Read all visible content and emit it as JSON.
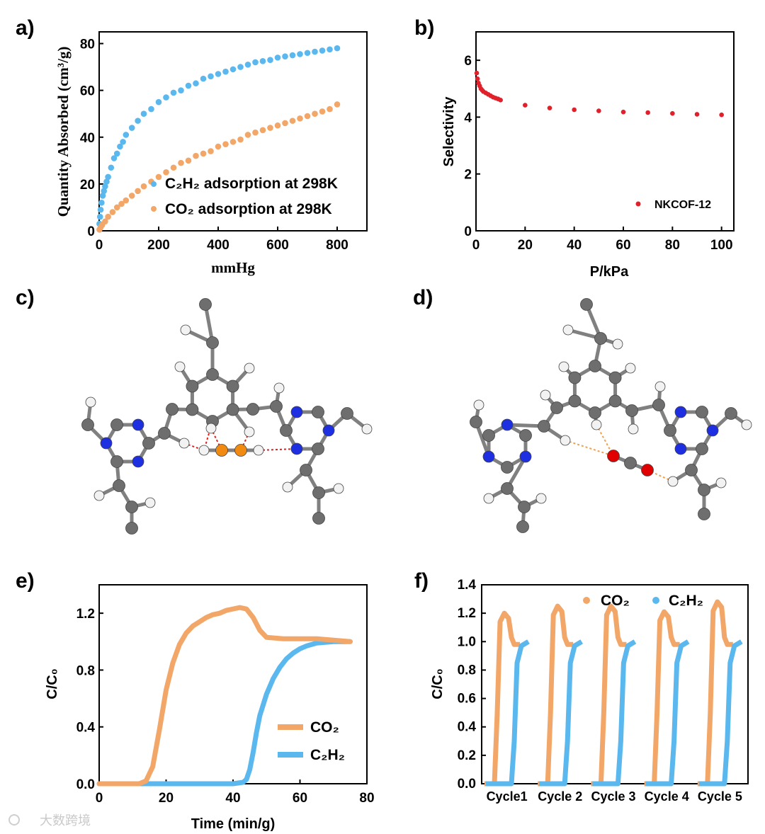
{
  "colors": {
    "blue": "#5bb8ee",
    "orange": "#f2a768",
    "red": "#e0202a",
    "carbon": "#6e6e6e",
    "nitrogen": "#1d2fe0",
    "hydrogen": "#f2f2f2",
    "oxygen": "#e00000",
    "acetylene": "#f08a10"
  },
  "panels": {
    "a": "a)",
    "b": "b)",
    "c": "c)",
    "d": "d)",
    "e": "e)",
    "f": "f)"
  },
  "watermark": "大数跨境",
  "chart_data": [
    {
      "panel": "a",
      "type": "scatter",
      "xlabel": "mmHg",
      "ylabel": "Quantity Absorbed (cm³/g)",
      "xlim": [
        0,
        900
      ],
      "ylim": [
        0,
        85
      ],
      "xticks": [
        "0",
        "200",
        "400",
        "600",
        "800"
      ],
      "yticks": [
        "0",
        "20",
        "40",
        "60",
        "80"
      ],
      "legend_position": "center-right",
      "series": [
        {
          "name": "C2H2 adsorption at 298K",
          "label": "C₂H₂  adsorption at 298K",
          "color": "#5bb8ee",
          "x": [
            1,
            3,
            5,
            8,
            12,
            16,
            20,
            25,
            30,
            40,
            50,
            60,
            70,
            80,
            90,
            110,
            130,
            150,
            175,
            200,
            225,
            250,
            275,
            300,
            325,
            350,
            375,
            400,
            425,
            450,
            475,
            500,
            525,
            550,
            575,
            600,
            625,
            650,
            675,
            700,
            725,
            750,
            775,
            800
          ],
          "y": [
            3,
            6,
            9,
            12,
            15,
            17,
            19,
            21,
            23,
            27,
            31,
            33,
            36,
            38,
            41,
            44,
            47,
            50,
            52,
            55,
            57,
            59,
            60,
            62,
            63,
            65,
            66,
            67,
            68,
            69,
            70,
            71,
            72,
            72.5,
            73,
            74,
            74.5,
            75,
            75.5,
            76,
            76.5,
            77,
            77.5,
            78
          ]
        },
        {
          "name": "CO2 adsorption at 298K",
          "label": "CO₂ adsorption at 298K",
          "color": "#f2a768",
          "x": [
            1,
            5,
            10,
            20,
            30,
            45,
            60,
            75,
            90,
            110,
            130,
            150,
            175,
            200,
            225,
            250,
            275,
            300,
            325,
            350,
            375,
            400,
            425,
            450,
            475,
            500,
            525,
            550,
            575,
            600,
            625,
            650,
            675,
            700,
            725,
            750,
            775,
            800
          ],
          "y": [
            0.5,
            1.5,
            2.5,
            4,
            6,
            8,
            10,
            11.5,
            13,
            15,
            17,
            19,
            21,
            23,
            25,
            27,
            29,
            30,
            32,
            33,
            34,
            36,
            37,
            38,
            39,
            41,
            42,
            43,
            44,
            45,
            46,
            47,
            48,
            49,
            50,
            51,
            52,
            54
          ]
        }
      ]
    },
    {
      "panel": "b",
      "type": "scatter",
      "xlabel": "P/kPa",
      "ylabel": "Selectivity",
      "xlim": [
        0,
        105
      ],
      "ylim": [
        0,
        7
      ],
      "xticks": [
        "0",
        "20",
        "40",
        "60",
        "80",
        "100"
      ],
      "yticks": [
        "0",
        "2",
        "4",
        "6"
      ],
      "legend_position": "bottom-right",
      "series": [
        {
          "name": "NKCOF-12",
          "label": "NKCOF-12",
          "color": "#e0202a",
          "x": [
            0.3,
            0.6,
            1,
            1.5,
            2,
            2.5,
            3,
            4,
            5,
            6,
            7,
            8,
            9,
            10,
            20,
            30,
            40,
            50,
            60,
            70,
            80,
            90,
            100
          ],
          "y": [
            5.55,
            5.35,
            5.2,
            5.1,
            5.0,
            4.95,
            4.9,
            4.85,
            4.8,
            4.75,
            4.7,
            4.67,
            4.64,
            4.6,
            4.42,
            4.32,
            4.26,
            4.22,
            4.18,
            4.16,
            4.13,
            4.1,
            4.08
          ]
        }
      ]
    },
    {
      "panel": "e",
      "type": "line",
      "xlabel": "Time (min/g)",
      "ylabel": "C/C₀",
      "xlim": [
        0,
        80
      ],
      "ylim": [
        0,
        1.4
      ],
      "xticks": [
        "0",
        "20",
        "40",
        "60",
        "80"
      ],
      "yticks": [
        "0.0",
        "0.4",
        "0.8",
        "1.2"
      ],
      "legend_position": "bottom-right",
      "series": [
        {
          "name": "CO2",
          "label": "CO₂",
          "color": "#f2a768",
          "x": [
            0,
            12,
            14,
            16,
            18,
            20,
            22,
            24,
            26,
            28,
            30,
            32,
            34,
            36,
            38,
            40,
            42,
            44,
            46,
            48,
            50,
            55,
            60,
            65,
            70,
            75
          ],
          "y": [
            0,
            0,
            0.02,
            0.12,
            0.38,
            0.66,
            0.85,
            0.98,
            1.06,
            1.11,
            1.14,
            1.17,
            1.19,
            1.2,
            1.22,
            1.23,
            1.24,
            1.23,
            1.17,
            1.08,
            1.03,
            1.02,
            1.02,
            1.02,
            1.01,
            1.0
          ]
        },
        {
          "name": "C2H2",
          "label": "C₂H₂",
          "color": "#5bb8ee",
          "x": [
            0,
            40,
            43,
            44,
            45,
            46,
            47,
            48,
            50,
            52,
            54,
            56,
            58,
            60,
            62,
            65,
            70,
            75
          ],
          "y": [
            0,
            0,
            0.01,
            0.03,
            0.1,
            0.22,
            0.36,
            0.48,
            0.63,
            0.74,
            0.82,
            0.88,
            0.92,
            0.95,
            0.97,
            0.99,
            1.0,
            1.0
          ]
        }
      ]
    },
    {
      "panel": "f",
      "type": "line",
      "xlabel": "",
      "ylabel": "C/C₀",
      "ylim": [
        0,
        1.4
      ],
      "yticks": [
        "0.0",
        "0.2",
        "0.4",
        "0.6",
        "0.8",
        "1.0",
        "1.2",
        "1.4"
      ],
      "categories": [
        "Cycle1",
        "Cycle 2",
        "Cycle 3",
        "Cycle 4",
        "Cycle 5"
      ],
      "legend_position": "top-right",
      "cycle_peaks": {
        "CO2": [
          1.2,
          1.25,
          1.25,
          1.21,
          1.28
        ],
        "C2H2": [
          1.0,
          1.0,
          1.0,
          1.0,
          1.0
        ]
      },
      "series": [
        {
          "name": "CO2",
          "label": "CO₂",
          "color": "#f2a768"
        },
        {
          "name": "C2H2",
          "label": "C₂H₂",
          "color": "#5bb8ee"
        }
      ]
    }
  ]
}
